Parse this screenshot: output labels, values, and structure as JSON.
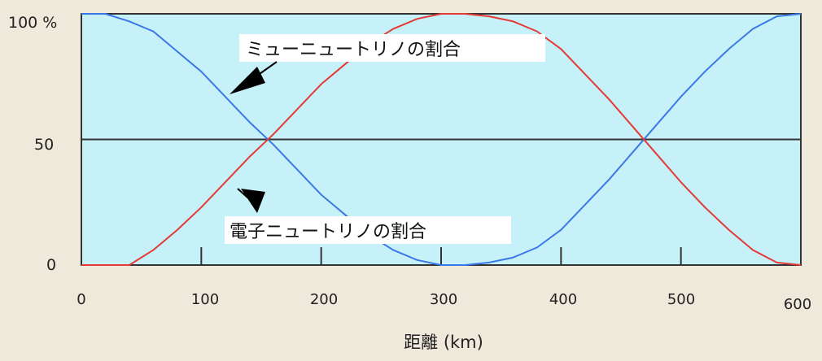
{
  "chart_data": {
    "type": "line",
    "xlabel": "距離 (km)",
    "ylabel": "",
    "x_ticks": [
      "0",
      "100",
      "200",
      "300",
      "400",
      "500",
      "600"
    ],
    "y_ticks": [
      "100 %",
      "50",
      "0"
    ],
    "xlim": [
      0,
      600
    ],
    "ylim": [
      0,
      100
    ],
    "grid": "horizontal line at 50",
    "annotations": [
      {
        "text": "ミューニュートリノの割合",
        "points_to": "blue series"
      },
      {
        "text": "電子ニュートリノの割合",
        "points_to": "red series"
      }
    ],
    "series": [
      {
        "color": "#3b78e7",
        "x": [
          0,
          20,
          40,
          60,
          80,
          100,
          120,
          140,
          160,
          180,
          200,
          220,
          240,
          260,
          280,
          300,
          320,
          340,
          360,
          380,
          400,
          420,
          440,
          460,
          480,
          500,
          520,
          540,
          560,
          580,
          600
        ],
        "y": [
          100,
          100,
          97,
          93,
          85,
          77,
          67,
          57,
          48,
          38,
          28,
          20,
          12,
          6,
          2,
          0,
          0,
          1,
          3,
          7,
          14,
          24,
          34,
          45,
          56,
          67,
          77,
          86,
          94,
          99,
          100
        ]
      },
      {
        "color": "#e53935",
        "x": [
          0,
          20,
          40,
          60,
          80,
          100,
          120,
          140,
          160,
          180,
          200,
          220,
          240,
          260,
          280,
          300,
          320,
          340,
          360,
          380,
          400,
          420,
          440,
          460,
          480,
          500,
          520,
          540,
          560,
          580,
          600
        ],
        "y": [
          0,
          0,
          0,
          6,
          14,
          23,
          33,
          43,
          52,
          62,
          72,
          80,
          88,
          94,
          98,
          100,
          100,
          99,
          97,
          93,
          86,
          76,
          66,
          55,
          44,
          33,
          23,
          14,
          6,
          1,
          0
        ]
      }
    ]
  },
  "colors": {
    "plot_background": "#c7f1f8",
    "page_background": "#efe9dc",
    "axis": "#333333"
  }
}
